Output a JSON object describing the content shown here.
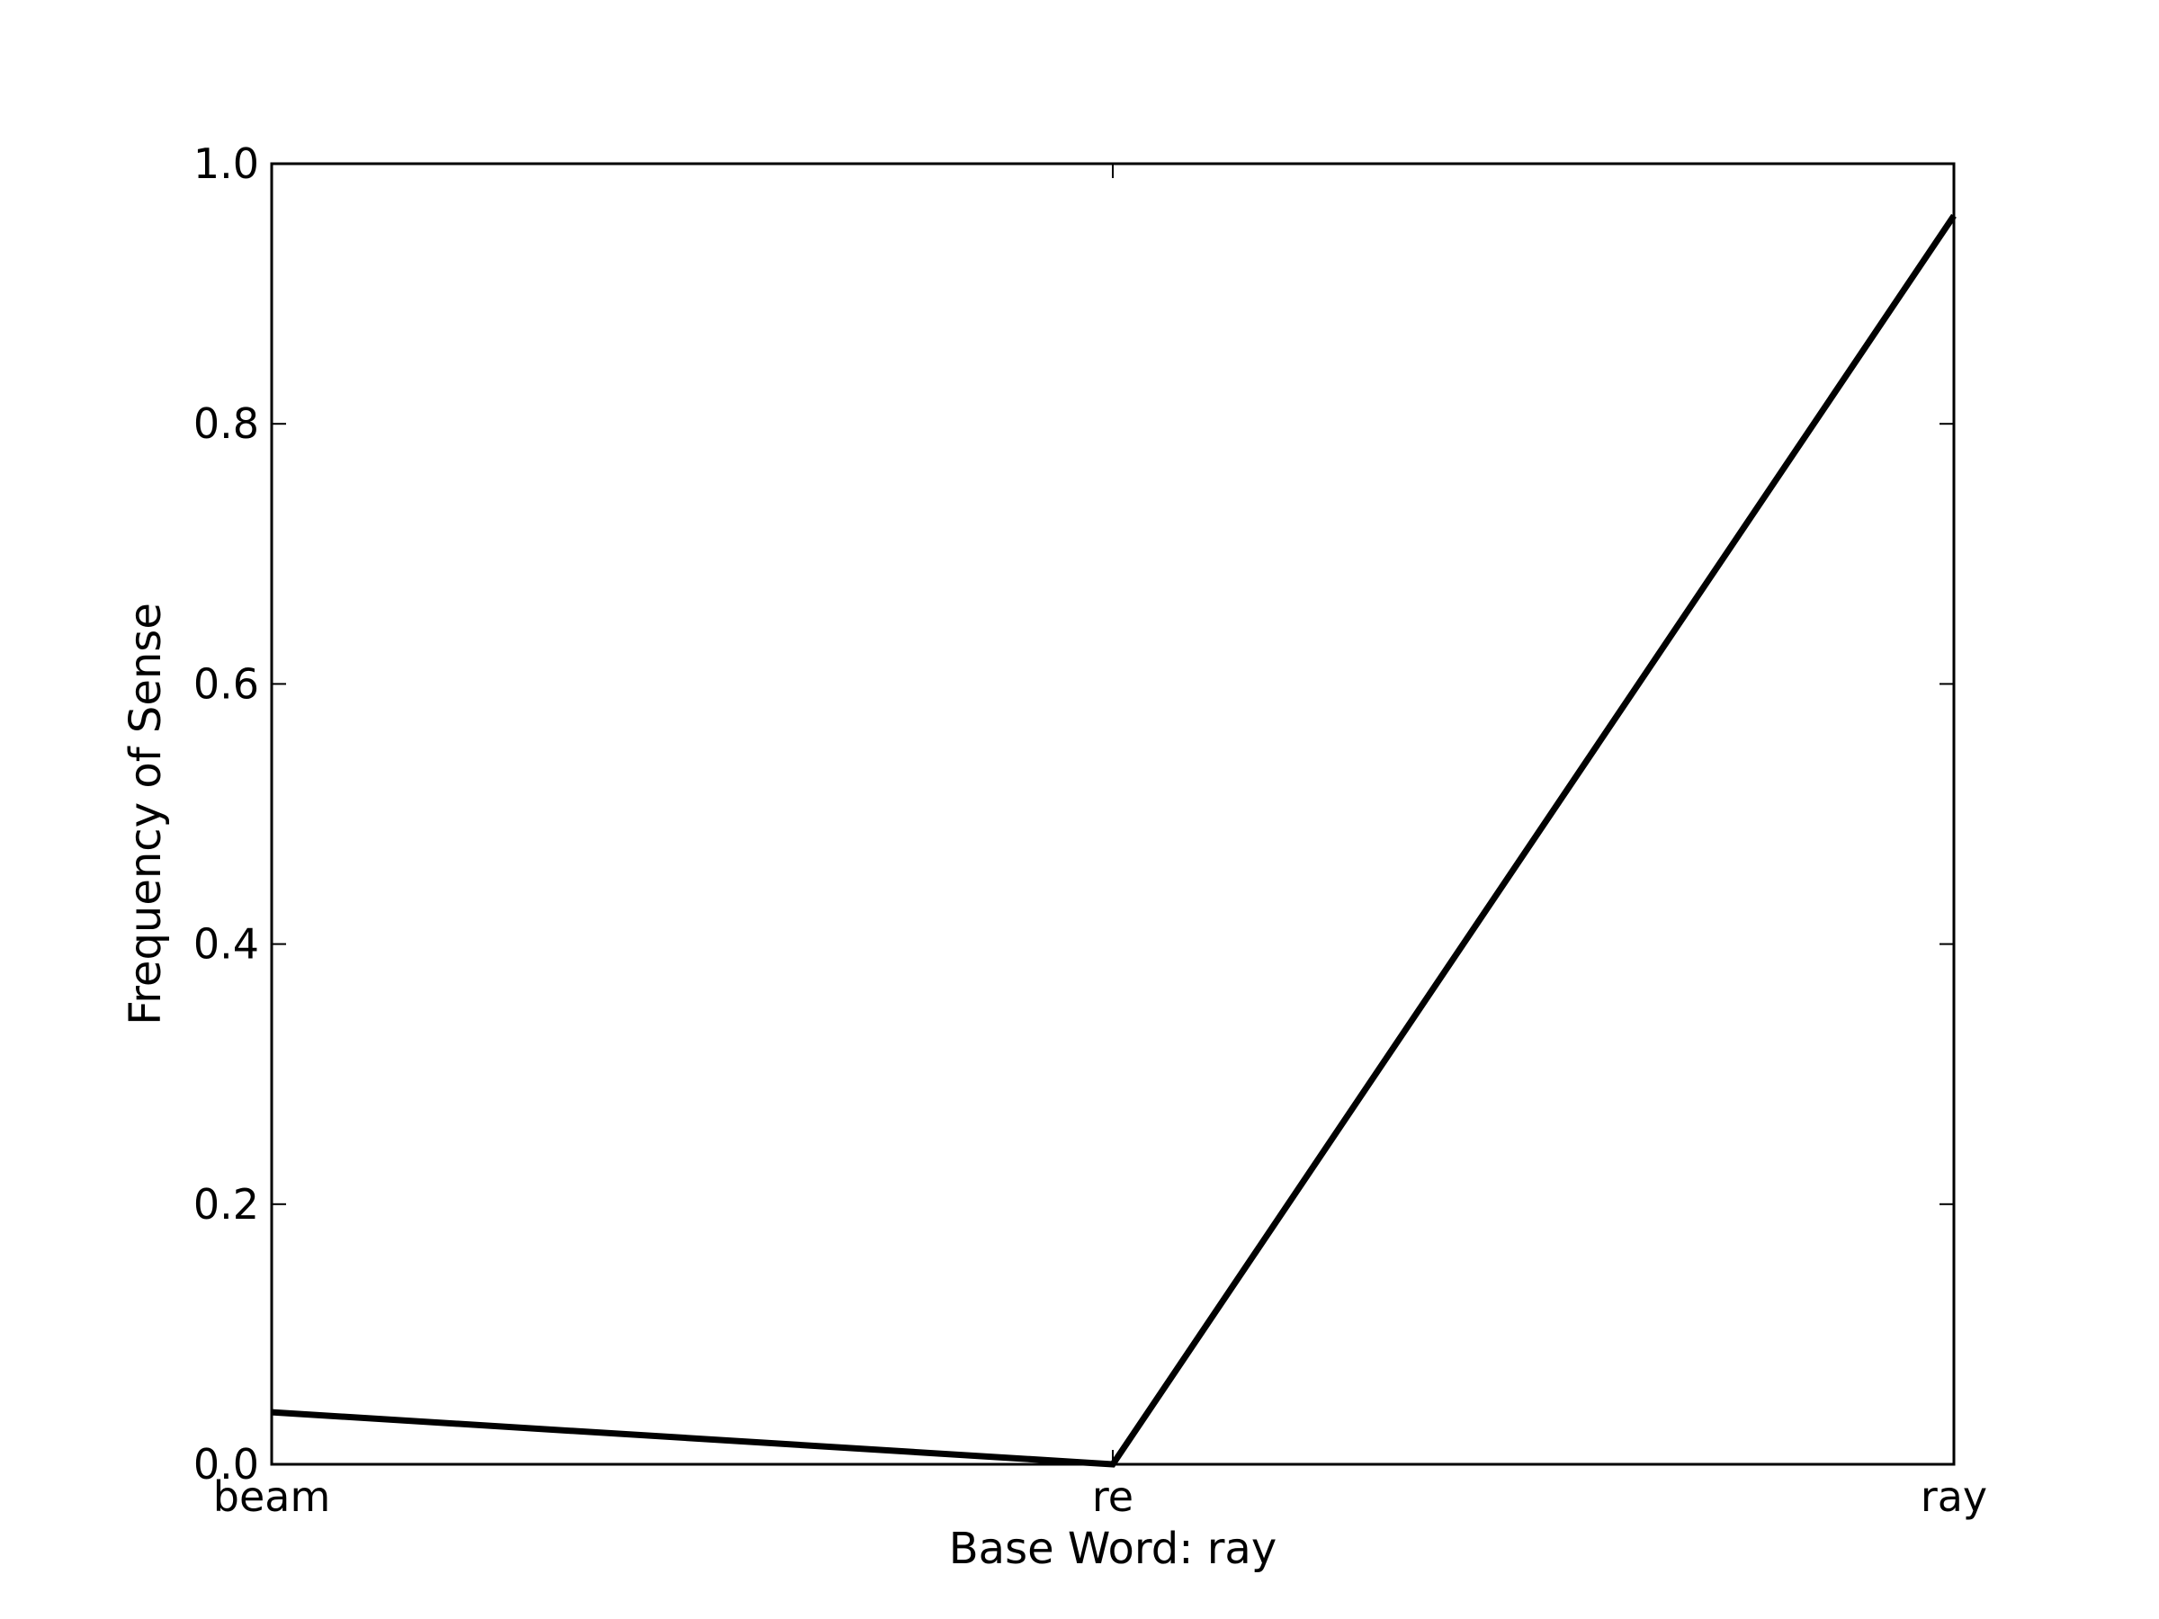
{
  "chart_data": {
    "type": "line",
    "title": "",
    "xlabel": "Base Word: ray",
    "ylabel": "Frequency of Sense",
    "categories": [
      "beam",
      "re",
      "ray"
    ],
    "series": [
      {
        "values": [
          0.04,
          0.0,
          0.96
        ],
        "color": "#000000"
      }
    ],
    "ylim": [
      0,
      1
    ],
    "yticks": [
      "0.0",
      "0.2",
      "0.4",
      "0.6",
      "0.8",
      "1.0"
    ],
    "grid": false,
    "legend": "none"
  }
}
